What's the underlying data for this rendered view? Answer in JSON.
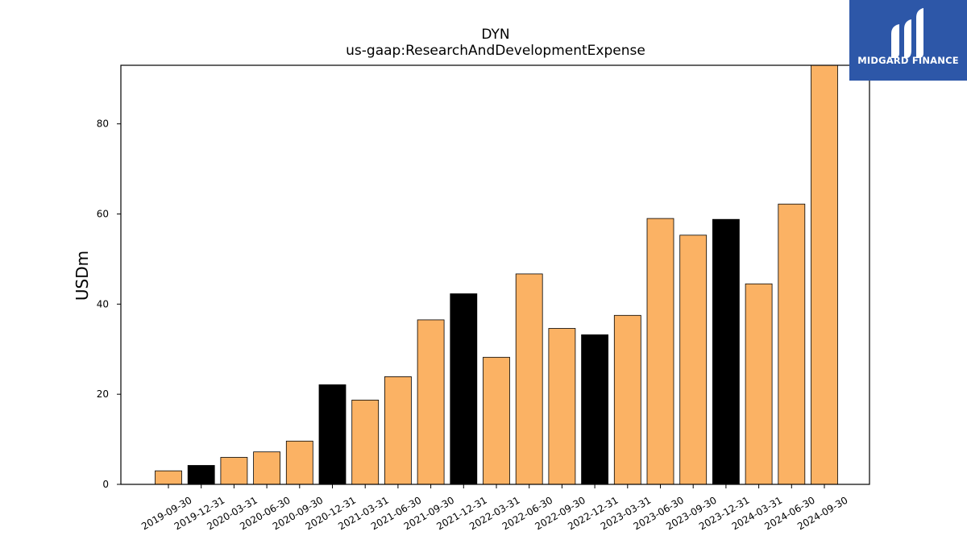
{
  "chart_data": {
    "type": "bar",
    "title": "DYN",
    "subtitle": "us-gaap:ResearchAndDevelopmentExpense",
    "xlabel": "",
    "ylabel": "USDm",
    "ylim": [
      0,
      93
    ],
    "yticks": [
      0,
      20,
      40,
      60,
      80
    ],
    "grid": false,
    "colors": {
      "quarter": "#fbb264",
      "year_end": "#000000",
      "edge": "#000000"
    },
    "categories": [
      "2019-09-30",
      "2019-12-31",
      "2020-03-31",
      "2020-06-30",
      "2020-09-30",
      "2020-12-31",
      "2021-03-31",
      "2021-06-30",
      "2021-09-30",
      "2021-12-31",
      "2022-03-31",
      "2022-06-30",
      "2022-09-30",
      "2022-12-31",
      "2023-03-31",
      "2023-06-30",
      "2023-09-30",
      "2023-12-31",
      "2024-03-31",
      "2024-06-30",
      "2024-09-30"
    ],
    "values": [
      3.0,
      4.2,
      6.0,
      7.2,
      9.6,
      22.1,
      18.7,
      23.9,
      36.5,
      42.3,
      28.2,
      46.7,
      34.6,
      33.2,
      37.5,
      59.0,
      55.3,
      58.8,
      44.5,
      62.2,
      93.0
    ],
    "highlight": [
      false,
      true,
      false,
      false,
      false,
      true,
      false,
      false,
      false,
      true,
      false,
      false,
      false,
      true,
      false,
      false,
      false,
      true,
      false,
      false,
      false
    ]
  },
  "logo": {
    "text": "MIDGARD FINANCE"
  }
}
